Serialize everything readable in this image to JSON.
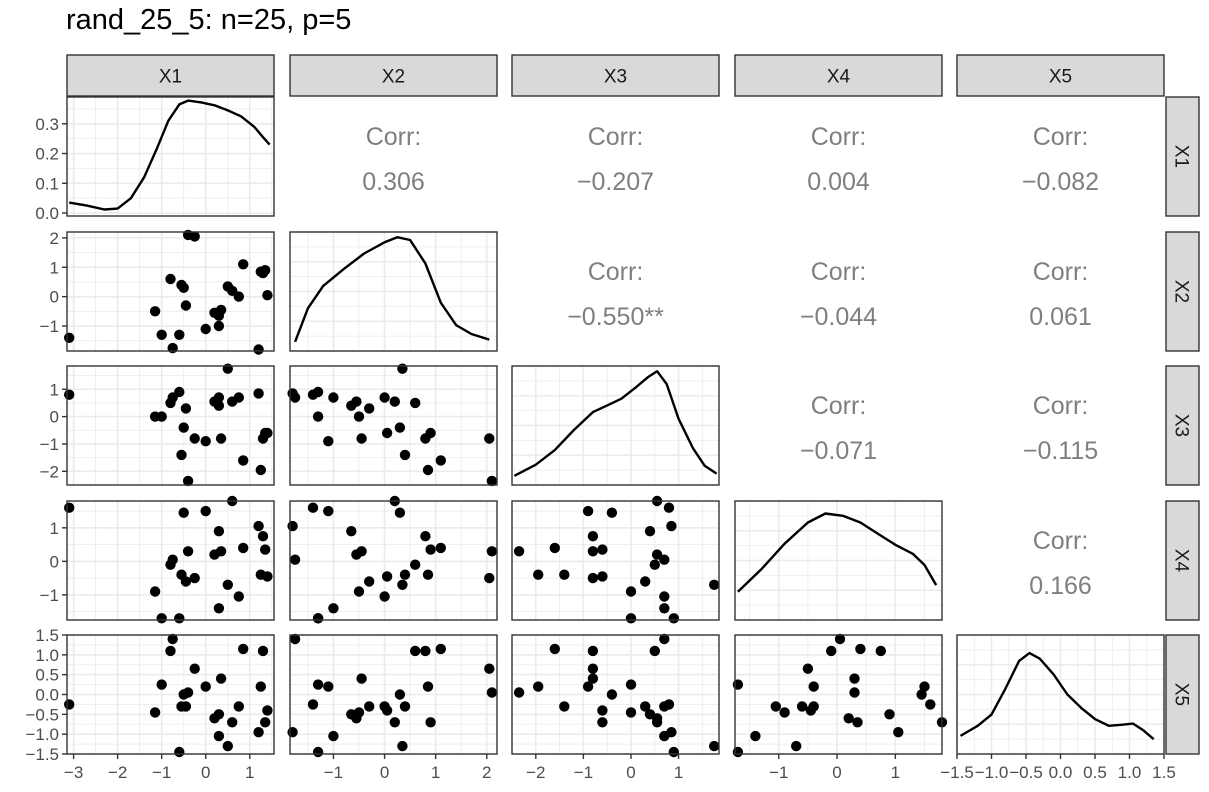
{
  "chart_data": {
    "type": "scatter-matrix",
    "title": "rand_25_5: n=25, p=5",
    "variables": [
      "X1",
      "X2",
      "X3",
      "X4",
      "X5"
    ],
    "corr_label": "Corr:",
    "correlations": [
      {
        "row": 0,
        "col": 1,
        "text": "0.306"
      },
      {
        "row": 0,
        "col": 2,
        "text": "−0.207"
      },
      {
        "row": 0,
        "col": 3,
        "text": "0.004"
      },
      {
        "row": 0,
        "col": 4,
        "text": "−0.082"
      },
      {
        "row": 1,
        "col": 2,
        "text": "−0.550**"
      },
      {
        "row": 1,
        "col": 3,
        "text": "−0.044"
      },
      {
        "row": 1,
        "col": 4,
        "text": "0.061"
      },
      {
        "row": 2,
        "col": 3,
        "text": "−0.071"
      },
      {
        "row": 2,
        "col": 4,
        "text": "−0.115"
      },
      {
        "row": 3,
        "col": 4,
        "text": "0.166"
      }
    ],
    "ranges": [
      [
        -3.15,
        1.55
      ],
      [
        -1.85,
        2.2
      ],
      [
        -2.5,
        1.85
      ],
      [
        -1.75,
        1.8
      ],
      [
        -1.5,
        1.5
      ]
    ],
    "x_ticks": [
      [
        {
          "v": -3,
          "label": "−3"
        },
        {
          "v": -2,
          "label": "−2"
        },
        {
          "v": -1,
          "label": "−1"
        },
        {
          "v": 0,
          "label": "0"
        },
        {
          "v": 1,
          "label": "1"
        }
      ],
      [
        {
          "v": -1,
          "label": "−1"
        },
        {
          "v": 0,
          "label": "0"
        },
        {
          "v": 1,
          "label": "1"
        },
        {
          "v": 2,
          "label": "2"
        }
      ],
      [
        {
          "v": -2,
          "label": "−2"
        },
        {
          "v": -1,
          "label": "−1"
        },
        {
          "v": 0,
          "label": "0"
        },
        {
          "v": 1,
          "label": "1"
        }
      ],
      [
        {
          "v": -1,
          "label": "−1"
        },
        {
          "v": 0,
          "label": "0"
        },
        {
          "v": 1,
          "label": "1"
        }
      ],
      [
        {
          "v": -1.5,
          "label": "−1.5"
        },
        {
          "v": -1.0,
          "label": "−1.0"
        },
        {
          "v": -0.5,
          "label": "−0.5"
        },
        {
          "v": 0.0,
          "label": "0.0"
        },
        {
          "v": 0.5,
          "label": "0.5"
        },
        {
          "v": 1.0,
          "label": "1.0"
        },
        {
          "v": 1.5,
          "label": "1.5"
        }
      ]
    ],
    "y_ticks": [
      [
        {
          "v": 0.0,
          "label": "0.0"
        },
        {
          "v": 0.1,
          "label": "0.1"
        },
        {
          "v": 0.2,
          "label": "0.2"
        },
        {
          "v": 0.3,
          "label": "0.3"
        }
      ],
      [
        {
          "v": -1,
          "label": "−1"
        },
        {
          "v": 0,
          "label": "0"
        },
        {
          "v": 1,
          "label": "1"
        },
        {
          "v": 2,
          "label": "2"
        }
      ],
      [
        {
          "v": -2,
          "label": "−2"
        },
        {
          "v": -1,
          "label": "−1"
        },
        {
          "v": 0,
          "label": "0"
        },
        {
          "v": 1,
          "label": "1"
        }
      ],
      [
        {
          "v": -1,
          "label": "−1"
        },
        {
          "v": 0,
          "label": "0"
        },
        {
          "v": 1,
          "label": "1"
        }
      ],
      [
        {
          "v": -1.5,
          "label": "−1.5"
        },
        {
          "v": -1.0,
          "label": "−1.0"
        },
        {
          "v": -0.5,
          "label": "−0.5"
        },
        {
          "v": 0.0,
          "label": "0.0"
        },
        {
          "v": 0.5,
          "label": "0.5"
        },
        {
          "v": 1.0,
          "label": "1.0"
        },
        {
          "v": 1.5,
          "label": "1.5"
        }
      ]
    ],
    "density_ylim": [
      -0.01,
      0.39
    ],
    "density_x1": [
      [
        -3.1,
        0.035
      ],
      [
        -2.7,
        0.025
      ],
      [
        -2.3,
        0.012
      ],
      [
        -2.0,
        0.015
      ],
      [
        -1.7,
        0.05
      ],
      [
        -1.4,
        0.12
      ],
      [
        -1.1,
        0.22
      ],
      [
        -0.85,
        0.31
      ],
      [
        -0.6,
        0.365
      ],
      [
        -0.4,
        0.378
      ],
      [
        -0.1,
        0.372
      ],
      [
        0.2,
        0.362
      ],
      [
        0.5,
        0.345
      ],
      [
        0.8,
        0.325
      ],
      [
        1.1,
        0.29
      ],
      [
        1.3,
        0.255
      ],
      [
        1.45,
        0.23
      ]
    ],
    "density_shapes": [
      [
        [
          -1.75,
          0.05
        ],
        [
          -1.5,
          0.35
        ],
        [
          -1.2,
          0.55
        ],
        [
          -0.8,
          0.7
        ],
        [
          -0.4,
          0.84
        ],
        [
          0.0,
          0.94
        ],
        [
          0.25,
          0.985
        ],
        [
          0.5,
          0.96
        ],
        [
          0.8,
          0.75
        ],
        [
          1.1,
          0.4
        ],
        [
          1.4,
          0.2
        ],
        [
          1.7,
          0.12
        ],
        [
          2.05,
          0.07
        ]
      ],
      [
        [
          -2.45,
          0.05
        ],
        [
          -2.0,
          0.15
        ],
        [
          -1.6,
          0.28
        ],
        [
          -1.2,
          0.46
        ],
        [
          -0.8,
          0.62
        ],
        [
          -0.5,
          0.68
        ],
        [
          -0.2,
          0.74
        ],
        [
          0.1,
          0.84
        ],
        [
          0.35,
          0.93
        ],
        [
          0.55,
          0.985
        ],
        [
          0.75,
          0.87
        ],
        [
          1.0,
          0.56
        ],
        [
          1.3,
          0.3
        ],
        [
          1.55,
          0.14
        ],
        [
          1.8,
          0.07
        ]
      ],
      [
        [
          -1.7,
          0.22
        ],
        [
          -1.3,
          0.42
        ],
        [
          -0.9,
          0.65
        ],
        [
          -0.5,
          0.84
        ],
        [
          -0.2,
          0.92
        ],
        [
          0.1,
          0.9
        ],
        [
          0.4,
          0.84
        ],
        [
          0.7,
          0.74
        ],
        [
          1.0,
          0.64
        ],
        [
          1.3,
          0.56
        ],
        [
          1.5,
          0.46
        ],
        [
          1.7,
          0.28
        ]
      ],
      [
        [
          -1.45,
          0.13
        ],
        [
          -1.2,
          0.22
        ],
        [
          -1.0,
          0.32
        ],
        [
          -0.8,
          0.55
        ],
        [
          -0.6,
          0.8
        ],
        [
          -0.45,
          0.87
        ],
        [
          -0.3,
          0.82
        ],
        [
          -0.1,
          0.68
        ],
        [
          0.1,
          0.5
        ],
        [
          0.3,
          0.38
        ],
        [
          0.5,
          0.28
        ],
        [
          0.7,
          0.22
        ],
        [
          0.9,
          0.23
        ],
        [
          1.05,
          0.24
        ],
        [
          1.2,
          0.18
        ],
        [
          1.35,
          0.1
        ]
      ]
    ],
    "points": [
      {
        "X1": -3.1,
        "X2": -1.4,
        "X3": 0.8,
        "X4": 1.6,
        "X5": -0.25
      },
      {
        "X1": -1.15,
        "X2": -0.5,
        "X3": 0.0,
        "X4": -0.9,
        "X5": -0.45
      },
      {
        "X1": -1.0,
        "X2": -1.3,
        "X3": 0.0,
        "X4": -1.7,
        "X5": 0.25
      },
      {
        "X1": -0.8,
        "X2": 0.6,
        "X3": 0.5,
        "X4": -0.1,
        "X5": 1.1
      },
      {
        "X1": -0.75,
        "X2": -1.75,
        "X3": 0.7,
        "X4": 0.05,
        "X5": 1.4
      },
      {
        "X1": -0.6,
        "X2": -1.3,
        "X3": 0.9,
        "X4": -1.7,
        "X5": -1.45
      },
      {
        "X1": -0.55,
        "X2": 0.4,
        "X3": -1.4,
        "X4": -0.4,
        "X5": -0.3
      },
      {
        "X1": -0.5,
        "X2": 0.3,
        "X3": -0.4,
        "X4": 1.45,
        "X5": 0.0
      },
      {
        "X1": -0.45,
        "X2": -0.3,
        "X3": 0.3,
        "X4": -0.6,
        "X5": -0.3
      },
      {
        "X1": -0.4,
        "X2": 2.1,
        "X3": -2.35,
        "X4": 0.3,
        "X5": 0.05
      },
      {
        "X1": -0.25,
        "X2": 2.05,
        "X3": -0.8,
        "X4": -0.5,
        "X5": 0.65
      },
      {
        "X1": 0.0,
        "X2": -1.1,
        "X3": -0.9,
        "X4": 1.5,
        "X5": 0.2
      },
      {
        "X1": 0.2,
        "X2": -0.55,
        "X3": 0.55,
        "X4": 0.2,
        "X5": -0.6
      },
      {
        "X1": 0.3,
        "X2": -0.65,
        "X3": 0.4,
        "X4": 0.9,
        "X5": -0.5
      },
      {
        "X1": 0.3,
        "X2": -1.0,
        "X3": 0.7,
        "X4": -1.4,
        "X5": -1.05
      },
      {
        "X1": 0.35,
        "X2": -0.45,
        "X3": -0.8,
        "X4": 0.3,
        "X5": 0.4
      },
      {
        "X1": 0.5,
        "X2": 0.35,
        "X3": 1.75,
        "X4": -0.7,
        "X5": -1.3
      },
      {
        "X1": 0.6,
        "X2": 0.2,
        "X3": 0.55,
        "X4": 1.8,
        "X5": -0.7
      },
      {
        "X1": 0.75,
        "X2": 0.0,
        "X3": 0.7,
        "X4": -1.05,
        "X5": -0.3
      },
      {
        "X1": 0.85,
        "X2": 1.1,
        "X3": -1.6,
        "X4": 0.4,
        "X5": 1.15
      },
      {
        "X1": 1.2,
        "X2": -1.8,
        "X3": 0.85,
        "X4": 1.05,
        "X5": -0.95
      },
      {
        "X1": 1.25,
        "X2": 0.85,
        "X3": -1.95,
        "X4": -0.4,
        "X5": 0.2
      },
      {
        "X1": 1.3,
        "X2": 0.8,
        "X3": -0.8,
        "X4": 0.75,
        "X5": 1.1
      },
      {
        "X1": 1.35,
        "X2": 0.9,
        "X3": -0.6,
        "X4": 0.35,
        "X5": -0.7
      },
      {
        "X1": 1.4,
        "X2": 0.05,
        "X3": -0.6,
        "X4": -0.45,
        "X5": -0.4
      }
    ]
  }
}
